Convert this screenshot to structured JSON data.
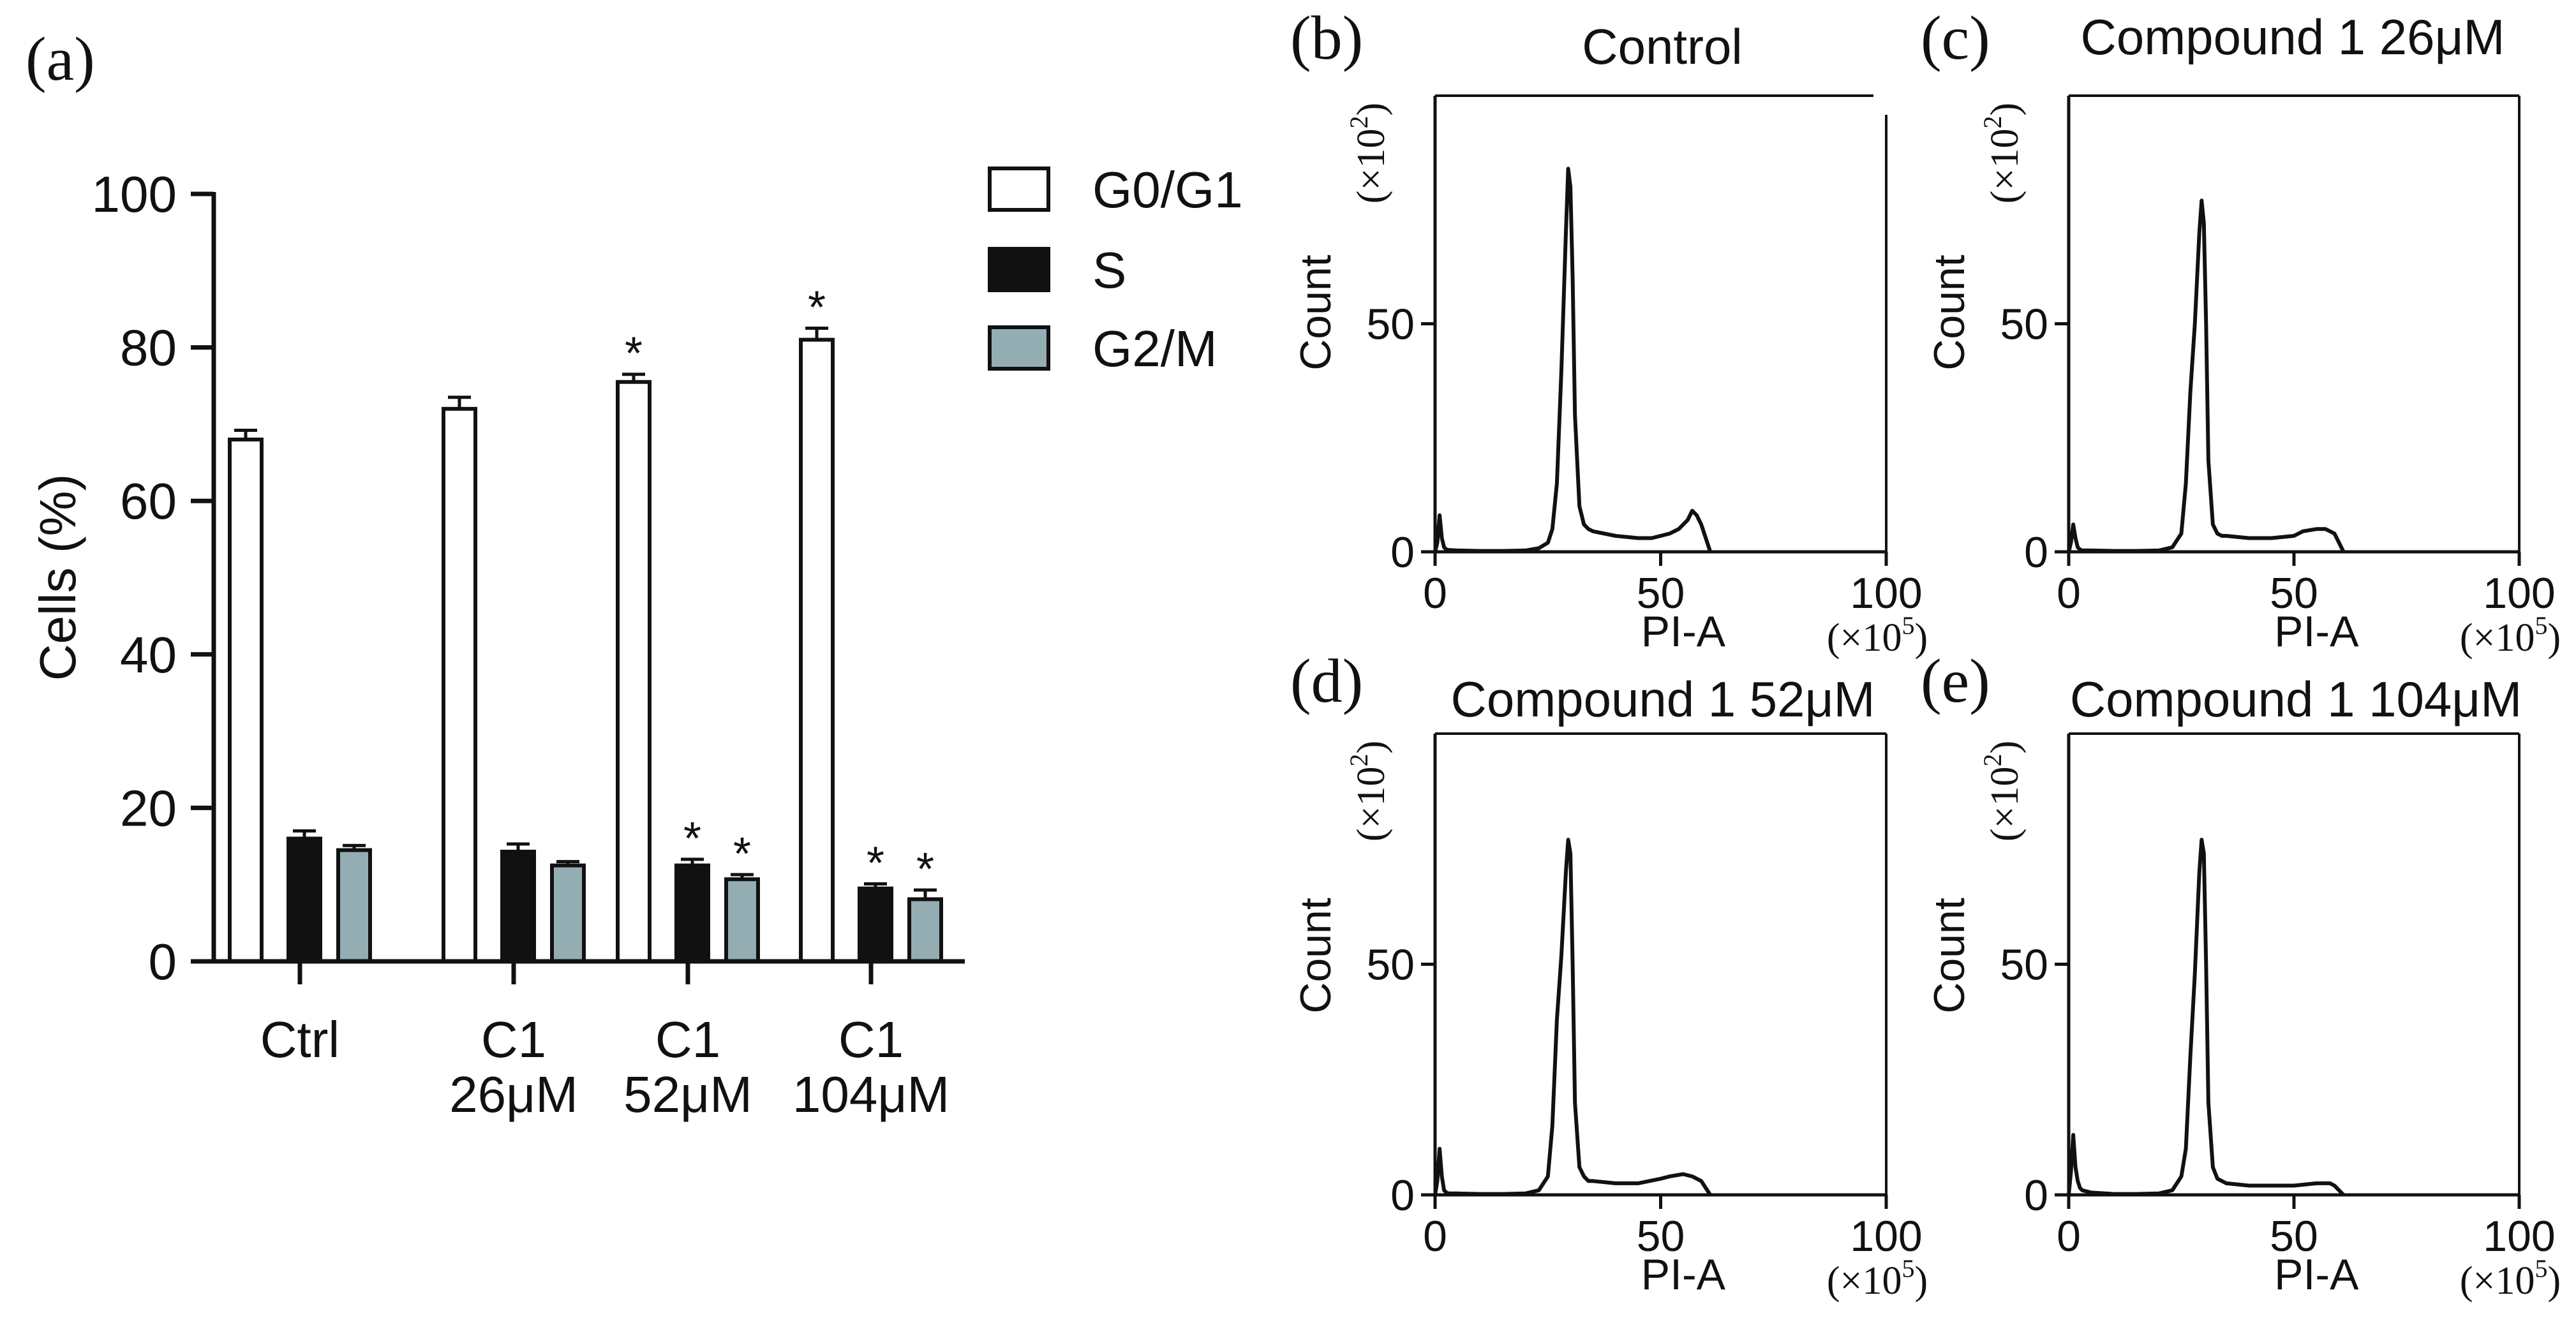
{
  "colors": {
    "g0g1": "#ffffff",
    "s": "#111111",
    "g2m": "#93adb3",
    "ink": "#111111",
    "background": "#ffffff"
  },
  "chart_data": [
    {
      "panel": "(a)",
      "type": "bar",
      "title": "",
      "xlabel": "",
      "ylabel": "Cells (%)",
      "ylim": [
        0,
        100
      ],
      "yticks": [
        "0",
        "20",
        "40",
        "60",
        "80",
        "100"
      ],
      "categories": [
        {
          "line1": "Ctrl",
          "line2": ""
        },
        {
          "line1": "C1",
          "line2": "26μM"
        },
        {
          "line1": "C1",
          "line2": "52μM"
        },
        {
          "line1": "C1",
          "line2": "104μM"
        }
      ],
      "series": [
        {
          "name": "G0/G1",
          "values": [
            68,
            72,
            75.5,
            81
          ],
          "errors": [
            1.2,
            1.5,
            1.0,
            1.5
          ],
          "significant": [
            false,
            false,
            true,
            true
          ]
        },
        {
          "name": "S",
          "values": [
            16,
            14.3,
            12.5,
            9.5
          ],
          "errors": [
            1.0,
            1.0,
            0.8,
            0.6
          ],
          "significant": [
            false,
            false,
            true,
            true
          ]
        },
        {
          "name": "G2/M",
          "values": [
            14.5,
            12.5,
            10.7,
            8.1
          ],
          "errors": [
            0.6,
            0.5,
            0.6,
            1.2
          ],
          "significant": [
            false,
            false,
            true,
            true
          ]
        }
      ],
      "significance_mark": "*",
      "legend": "top-right"
    },
    {
      "panel": "(b)",
      "type": "line",
      "title": "Control",
      "xlabel": "PI-A",
      "ylabel": "Count",
      "x_unit": "(×10",
      "x_unit_exp": "5",
      "x_unit_close": ")",
      "y_unit": "(×10",
      "y_unit_exp": "2",
      "y_unit_close": ")",
      "xlim": [
        0,
        100
      ],
      "ylim": [
        0,
        100
      ],
      "xticks": [
        "0",
        "50",
        "100"
      ],
      "yticks": [
        "0",
        "50"
      ],
      "x": [
        0,
        0.5,
        1,
        1.5,
        2,
        2.5,
        3,
        5,
        10,
        15,
        20,
        23,
        25,
        26,
        27,
        28,
        29,
        29.5,
        30,
        30.5,
        31,
        32,
        33,
        34,
        35,
        40,
        45,
        48,
        50,
        52,
        54,
        56,
        57,
        58,
        59,
        60,
        61
      ],
      "y": [
        0,
        2,
        8,
        3,
        1,
        0.5,
        0.4,
        0.3,
        0.2,
        0.2,
        0.3,
        0.8,
        2,
        5,
        15,
        40,
        70,
        84,
        80,
        60,
        30,
        10,
        6,
        5,
        4.5,
        3.5,
        3,
        3,
        3.5,
        4,
        5,
        7,
        9,
        8,
        6,
        3,
        0
      ]
    },
    {
      "panel": "(c)",
      "type": "line",
      "title": "Compound 1 26μM",
      "xlabel": "PI-A",
      "ylabel": "Count",
      "x_unit": "(×10",
      "x_unit_exp": "5",
      "x_unit_close": ")",
      "y_unit": "(×10",
      "y_unit_exp": "2",
      "y_unit_close": ")",
      "xlim": [
        0,
        100
      ],
      "ylim": [
        0,
        100
      ],
      "xticks": [
        "0",
        "50",
        "100"
      ],
      "yticks": [
        "0",
        "50"
      ],
      "x": [
        0,
        0.5,
        1,
        1.5,
        2,
        2.5,
        3,
        5,
        10,
        15,
        20,
        23,
        25,
        26,
        27,
        28,
        29,
        29.5,
        30,
        30.5,
        31,
        32,
        33,
        34,
        35,
        40,
        45,
        50,
        52,
        55,
        57,
        58,
        59,
        60,
        61
      ],
      "y": [
        0,
        2,
        6,
        3,
        1,
        0.5,
        0.3,
        0.3,
        0.2,
        0.2,
        0.3,
        1,
        4,
        15,
        35,
        50,
        70,
        77,
        72,
        50,
        20,
        6,
        4,
        3.5,
        3.5,
        3,
        3,
        3.5,
        4.5,
        5,
        5,
        4.5,
        4,
        2,
        0
      ]
    },
    {
      "panel": "(d)",
      "type": "line",
      "title": "Compound 1 52μM",
      "xlabel": "PI-A",
      "ylabel": "Count",
      "x_unit": "(×10",
      "x_unit_exp": "5",
      "x_unit_close": ")",
      "y_unit": "(×10",
      "y_unit_exp": "2",
      "y_unit_close": ")",
      "xlim": [
        0,
        100
      ],
      "ylim": [
        0,
        100
      ],
      "xticks": [
        "0",
        "50",
        "100"
      ],
      "yticks": [
        "0",
        "50"
      ],
      "x": [
        0,
        0.5,
        1,
        1.5,
        2,
        2.5,
        3,
        5,
        10,
        15,
        20,
        23,
        25,
        26,
        27,
        28,
        29,
        29.5,
        30,
        30.5,
        31,
        32,
        33,
        34,
        35,
        40,
        45,
        50,
        52,
        55,
        57,
        58,
        59,
        60,
        61
      ],
      "y": [
        0,
        3,
        10,
        4,
        1,
        0.5,
        0.3,
        0.3,
        0.2,
        0.2,
        0.3,
        1,
        4,
        15,
        38,
        52,
        70,
        77,
        74,
        50,
        20,
        6,
        4,
        3,
        3,
        2.5,
        2.5,
        3.5,
        4,
        4.5,
        4,
        3.5,
        3,
        1.5,
        0
      ]
    },
    {
      "panel": "(e)",
      "type": "line",
      "title": "Compound 1 104μM",
      "xlabel": "PI-A",
      "ylabel": "Count",
      "x_unit": "(×10",
      "x_unit_exp": "5",
      "x_unit_close": ")",
      "y_unit": "(×10",
      "y_unit_exp": "2",
      "y_unit_close": ")",
      "xlim": [
        0,
        100
      ],
      "ylim": [
        0,
        100
      ],
      "xticks": [
        "0",
        "50",
        "100"
      ],
      "yticks": [
        "0",
        "50"
      ],
      "x": [
        0,
        0.5,
        1,
        1.5,
        2,
        2.5,
        3,
        5,
        10,
        15,
        20,
        23,
        25,
        26,
        27,
        28,
        29,
        29.5,
        30,
        30.5,
        31,
        32,
        33,
        34,
        35,
        40,
        45,
        50,
        55,
        58,
        59,
        60,
        61
      ],
      "y": [
        0,
        5,
        13,
        6,
        3,
        1.5,
        1,
        0.5,
        0.2,
        0.2,
        0.3,
        1,
        4,
        10,
        30,
        48,
        70,
        77,
        74,
        50,
        20,
        6,
        3.5,
        3,
        2.5,
        2,
        2,
        2,
        2.5,
        2.5,
        2,
        1,
        0
      ]
    }
  ]
}
